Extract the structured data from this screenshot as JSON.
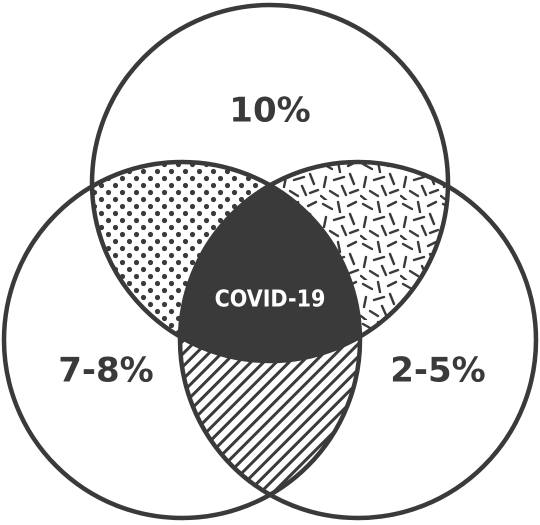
{
  "diagram": {
    "type": "venn-3",
    "regions": {
      "top_only": {
        "label": "10%"
      },
      "left_only": {
        "label": "7-8%"
      },
      "right_only": {
        "label": "2-5%"
      },
      "top_left_overlap": {
        "pattern": "dots"
      },
      "top_right_overlap": {
        "pattern": "dashes"
      },
      "left_right_overlap": {
        "pattern": "diagonal-stripes"
      },
      "center": {
        "label": "COVID-19"
      }
    },
    "colors": {
      "stroke": "#3a3a3a",
      "center_fill": "#3a3a3a",
      "center_text": "#ffffff",
      "background": "#ffffff"
    }
  }
}
